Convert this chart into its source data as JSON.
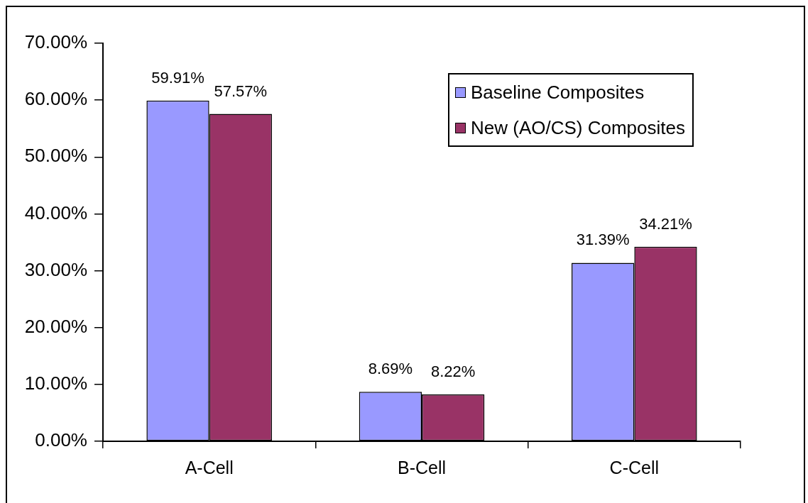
{
  "chart_data": {
    "type": "bar",
    "categories": [
      "A-Cell",
      "B-Cell",
      "C-Cell"
    ],
    "series": [
      {
        "name": "Baseline Composites",
        "color": "#9999ff",
        "values": [
          59.91,
          8.69,
          31.39
        ],
        "value_labels": [
          "59.91%",
          "8.69%",
          "31.39%"
        ]
      },
      {
        "name": "New (AO/CS) Composites",
        "color": "#993366",
        "values": [
          57.57,
          8.22,
          34.21
        ],
        "value_labels": [
          "57.57%",
          "8.22%",
          "34.21%"
        ]
      }
    ],
    "ylim": [
      0,
      70
    ],
    "yticks": [
      {
        "value": 0,
        "label": "0.00%"
      },
      {
        "value": 10,
        "label": "10.00%"
      },
      {
        "value": 20,
        "label": "20.00%"
      },
      {
        "value": 30,
        "label": "30.00%"
      },
      {
        "value": 40,
        "label": "40.00%"
      },
      {
        "value": 50,
        "label": "50.00%"
      },
      {
        "value": 60,
        "label": "60.00%"
      },
      {
        "value": 70,
        "label": "70.00%"
      }
    ],
    "legend": "top right"
  }
}
